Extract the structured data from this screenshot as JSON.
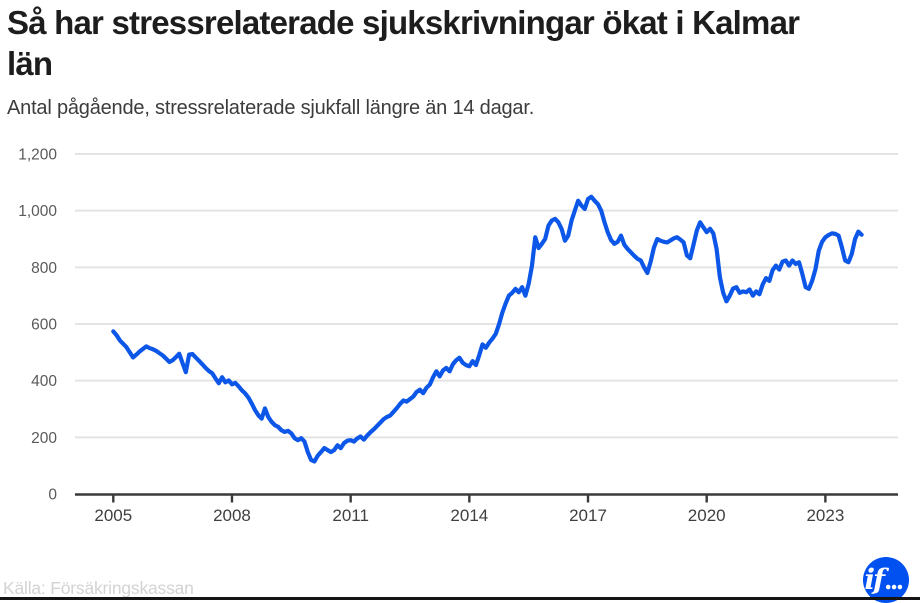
{
  "header": {
    "title": "Så har stressrelaterade sjukskrivningar ökat i Kalmar län",
    "title_lines": [
      "Så har stressrelaterade sjukskrivningar ökat i Kalmar",
      "län"
    ],
    "subtitle": "Antal pågående, stressrelaterade sjukfall längre än 14 dagar."
  },
  "footer": {
    "source": "Källa: Försäkringskassan",
    "logo_text": "if",
    "logo_dots": "...",
    "logo_color": "#0051f0"
  },
  "chart_data": {
    "type": "line",
    "title": "Så har stressrelaterade sjukskrivningar ökat i Kalmar län",
    "subtitle": "Antal pågående, stressrelaterade sjukfall längre än 14 dagar.",
    "xlabel": "",
    "ylabel": "",
    "ylim": [
      0,
      1200
    ],
    "grid": "horizontal",
    "legend": "none",
    "line_color": "#0d57e8",
    "axis_color": "#3a3a3a",
    "grid_color": "#e4e4e4",
    "yticks": [
      {
        "value": 0,
        "label": "0"
      },
      {
        "value": 200,
        "label": "200"
      },
      {
        "value": 400,
        "label": "400"
      },
      {
        "value": 600,
        "label": "600"
      },
      {
        "value": 800,
        "label": "800"
      },
      {
        "value": 1000,
        "label": "1,000"
      },
      {
        "value": 1200,
        "label": "1,200"
      }
    ],
    "xticks": [
      {
        "year": 2005,
        "label": "2005"
      },
      {
        "year": 2008,
        "label": "2008"
      },
      {
        "year": 2011,
        "label": "2011"
      },
      {
        "year": 2014,
        "label": "2014"
      },
      {
        "year": 2017,
        "label": "2017"
      },
      {
        "year": 2020,
        "label": "2020"
      },
      {
        "year": 2023,
        "label": "2023"
      }
    ],
    "x_start_year": 2005,
    "x_frequency": "monthly",
    "series": [
      {
        "name": "Antal pågående stressrelaterade sjukfall",
        "color": "#0d57e8",
        "values": [
          574,
          560,
          542,
          530,
          518,
          500,
          482,
          492,
          503,
          512,
          521,
          515,
          511,
          505,
          497,
          489,
          478,
          466,
          472,
          483,
          495,
          462,
          430,
          492,
          494,
          482,
          470,
          458,
          445,
          434,
          426,
          408,
          391,
          412,
          394,
          401,
          387,
          392,
          380,
          366,
          355,
          340,
          319,
          296,
          278,
          266,
          302,
          272,
          255,
          243,
          237,
          225,
          219,
          223,
          214,
          197,
          190,
          197,
          185,
          148,
          120,
          115,
          135,
          148,
          162,
          155,
          148,
          155,
          172,
          162,
          180,
          188,
          190,
          185,
          196,
          203,
          192,
          206,
          218,
          228,
          240,
          252,
          264,
          272,
          277,
          290,
          303,
          318,
          330,
          326,
          335,
          344,
          360,
          368,
          356,
          375,
          386,
          412,
          433,
          415,
          436,
          445,
          433,
          458,
          472,
          481,
          463,
          455,
          451,
          469,
          455,
          490,
          528,
          516,
          534,
          548,
          565,
          599,
          640,
          672,
          700,
          710,
          724,
          712,
          730,
          700,
          742,
          806,
          906,
          868,
          883,
          900,
          947,
          965,
          971,
          959,
          935,
          894,
          912,
          965,
          1000,
          1035,
          1018,
          1006,
          1041,
          1049,
          1035,
          1023,
          1000,
          959,
          923,
          896,
          883,
          890,
          912,
          880,
          865,
          853,
          841,
          830,
          824,
          800,
          780,
          820,
          870,
          900,
          894,
          890,
          888,
          895,
          902,
          906,
          898,
          888,
          842,
          832,
          880,
          930,
          959,
          941,
          924,
          936,
          920,
          865,
          765,
          710,
          680,
          700,
          725,
          730,
          710,
          715,
          712,
          722,
          700,
          715,
          705,
          740,
          762,
          752,
          790,
          806,
          792,
          820,
          824,
          806,
          824,
          812,
          818,
          777,
          730,
          724,
          753,
          794,
          859,
          890,
          906,
          914,
          920,
          918,
          912,
          871,
          824,
          818,
          847,
          900,
          926,
          915
        ]
      }
    ]
  }
}
